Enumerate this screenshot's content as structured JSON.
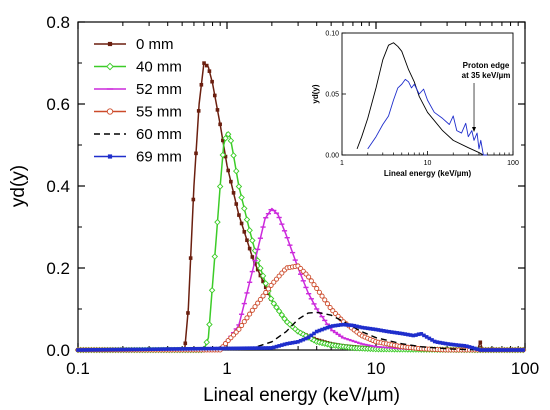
{
  "chart_data": [
    {
      "type": "line",
      "xlabel": "Lineal energy (keV/µm)",
      "ylabel": "yd(y)",
      "xscale": "log",
      "xlim": [
        0.1,
        100
      ],
      "ylim": [
        0,
        0.8
      ],
      "xticks": [
        0.1,
        1,
        10,
        100
      ],
      "xtick_labels": [
        "0.1",
        "1",
        "10",
        "100"
      ],
      "yticks": [
        0.0,
        0.2,
        0.4,
        0.6,
        0.8
      ],
      "ytick_labels": [
        "0.0",
        "0.2",
        "0.4",
        "0.6",
        "0.8"
      ],
      "legend_position": "top-left",
      "grid": false,
      "series": [
        {
          "name": "0 mm",
          "color": "#6b1f0f",
          "marker": "square-filled",
          "x": [
            0.1,
            0.52,
            0.55,
            0.6,
            0.65,
            0.7,
            0.75,
            0.8,
            0.9,
            1.0,
            1.2,
            1.5,
            2.0,
            2.5,
            3.0,
            4.0,
            5.0,
            6.0,
            8.0,
            10.0,
            15.0,
            20.0,
            30.0,
            40.0,
            48.0,
            50.0,
            52.0,
            60.0,
            100.0
          ],
          "y": [
            0,
            0,
            0.1,
            0.4,
            0.6,
            0.7,
            0.69,
            0.65,
            0.55,
            0.45,
            0.33,
            0.22,
            0.12,
            0.07,
            0.045,
            0.025,
            0.015,
            0.01,
            0.006,
            0.004,
            0.002,
            0.001,
            0.001,
            0.0,
            0.0,
            0.02,
            0.0,
            0,
            0
          ]
        },
        {
          "name": "40 mm",
          "color": "#3ccc28",
          "marker": "diamond-open",
          "x": [
            0.1,
            0.7,
            0.75,
            0.8,
            0.85,
            0.9,
            0.95,
            1.0,
            1.05,
            1.1,
            1.2,
            1.4,
            1.6,
            2.0,
            2.5,
            3.0,
            4.0,
            5.0,
            7.0,
            10.0,
            20.0,
            50.0,
            100.0
          ],
          "y": [
            0,
            0,
            0.03,
            0.16,
            0.28,
            0.4,
            0.5,
            0.53,
            0.52,
            0.48,
            0.4,
            0.3,
            0.22,
            0.12,
            0.07,
            0.045,
            0.02,
            0.012,
            0.005,
            0.002,
            0.001,
            0,
            0
          ]
        },
        {
          "name": "52 mm",
          "color": "#cc2adc",
          "marker": "dash-line",
          "x": [
            0.1,
            0.9,
            1.0,
            1.2,
            1.5,
            1.8,
            2.0,
            2.2,
            2.5,
            3.0,
            3.5,
            4.0,
            5.0,
            6.0,
            8.0,
            10.0,
            15.0,
            20.0,
            30.0,
            100.0
          ],
          "y": [
            0,
            0,
            0.02,
            0.06,
            0.2,
            0.32,
            0.345,
            0.33,
            0.28,
            0.2,
            0.14,
            0.1,
            0.05,
            0.03,
            0.015,
            0.008,
            0.003,
            0.001,
            0,
            0
          ]
        },
        {
          "name": "55 mm",
          "color": "#cc4a2a",
          "marker": "circle-open",
          "x": [
            0.1,
            0.9,
            1.0,
            1.2,
            1.5,
            2.0,
            2.5,
            3.0,
            3.5,
            4.0,
            5.0,
            6.0,
            8.0,
            10.0,
            15.0,
            20.0,
            30.0,
            100.0
          ],
          "y": [
            0,
            0,
            0.02,
            0.05,
            0.1,
            0.16,
            0.2,
            0.205,
            0.18,
            0.15,
            0.1,
            0.07,
            0.035,
            0.02,
            0.008,
            0.003,
            0,
            0
          ]
        },
        {
          "name": "60 mm",
          "color": "#000000",
          "marker": "dashed",
          "x": [
            0.1,
            1.5,
            2.0,
            2.5,
            3.0,
            3.5,
            4.0,
            5.0,
            6.0,
            8.0,
            10.0,
            15.0,
            20.0,
            30.0,
            40.0,
            100.0
          ],
          "y": [
            0,
            0.005,
            0.02,
            0.045,
            0.075,
            0.09,
            0.092,
            0.085,
            0.07,
            0.045,
            0.03,
            0.015,
            0.008,
            0.003,
            0.001,
            0
          ]
        },
        {
          "name": "69 mm",
          "color": "#1f2ecc",
          "marker": "square-filled",
          "x": [
            0.1,
            2.0,
            2.5,
            3.0,
            3.5,
            4.0,
            5.0,
            6.0,
            7.0,
            8.0,
            10.0,
            12.0,
            15.0,
            18.0,
            20.0,
            25.0,
            30.0,
            35.0,
            40.0,
            45.0,
            50.0,
            100.0
          ],
          "y": [
            0,
            0.005,
            0.015,
            0.02,
            0.03,
            0.045,
            0.058,
            0.062,
            0.06,
            0.055,
            0.05,
            0.045,
            0.04,
            0.035,
            0.04,
            0.02,
            0.015,
            0.012,
            0.01,
            0.005,
            0,
            0
          ]
        }
      ]
    },
    {
      "type": "line",
      "xlabel": "Lineal energy (keV/µm)",
      "ylabel": "yd(y)",
      "xscale": "log",
      "xlim": [
        1,
        100
      ],
      "ylim": [
        0,
        0.1
      ],
      "xticks": [
        1,
        10,
        100
      ],
      "xtick_labels": [
        "1",
        "10",
        "100"
      ],
      "yticks": [
        0.0,
        0.05,
        0.1
      ],
      "ytick_labels": [
        "0.00",
        "0.05",
        "0.10"
      ],
      "position": "top-right inset",
      "annotation": {
        "lines": [
          "Proton edge",
          "at 35 keV/µm"
        ],
        "points_to_x": 35,
        "points_to_y": 0.018
      },
      "series": [
        {
          "color": "#000000",
          "x": [
            1.5,
            1.7,
            2.0,
            2.5,
            3.0,
            3.5,
            4.0,
            4.5,
            5.0,
            6.0,
            7.0,
            8.0,
            10.0,
            15.0,
            20.0,
            30.0,
            40.0,
            45.0
          ],
          "y": [
            0.005,
            0.015,
            0.03,
            0.055,
            0.078,
            0.09,
            0.092,
            0.089,
            0.085,
            0.07,
            0.06,
            0.048,
            0.035,
            0.02,
            0.012,
            0.006,
            0.002,
            0.0
          ]
        },
        {
          "color": "#1f2ecc",
          "x": [
            2.0,
            2.5,
            3.0,
            3.5,
            4.0,
            4.5,
            5.0,
            5.5,
            6.0,
            6.5,
            7.0,
            8.0,
            9.0,
            10.0,
            12.0,
            15.0,
            18.0,
            20.0,
            22.0,
            25.0,
            28.0,
            30.0,
            33.0,
            35.0,
            38.0,
            40.0,
            42.0,
            45.0,
            50.0
          ],
          "y": [
            0.005,
            0.015,
            0.025,
            0.032,
            0.045,
            0.055,
            0.058,
            0.062,
            0.06,
            0.055,
            0.058,
            0.05,
            0.054,
            0.045,
            0.035,
            0.03,
            0.025,
            0.032,
            0.02,
            0.018,
            0.026,
            0.015,
            0.02,
            0.012,
            0.018,
            0.005,
            0.012,
            0.0,
            0.0
          ]
        }
      ]
    }
  ]
}
